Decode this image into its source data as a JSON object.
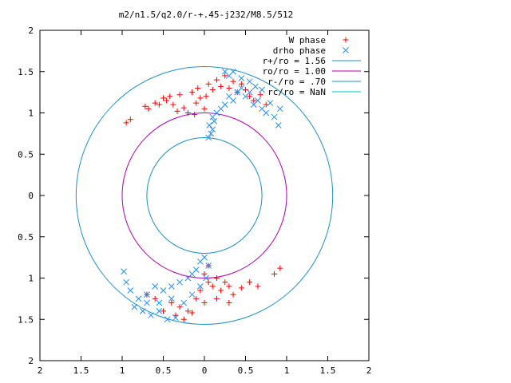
{
  "chart_data": {
    "type": "scatter",
    "title": "m2/n1.5/q2.0/r-+.45-j232/M8.5/512",
    "xlabel": "",
    "ylabel": "",
    "xlim": [
      -2,
      2
    ],
    "ylim": [
      -2,
      2
    ],
    "grid": false,
    "legend_position": "top-right",
    "x_ticks": [
      -2,
      -1.5,
      -1,
      -0.5,
      0,
      0.5,
      1,
      1.5,
      2
    ],
    "y_ticks": [
      -2,
      -1.5,
      -1,
      -0.5,
      0,
      0.5,
      1,
      1.5,
      2
    ],
    "x_tick_labels": [
      "2",
      "1.5",
      "1",
      "0.5",
      "0",
      "0.5",
      "1",
      "1.5",
      "2"
    ],
    "y_tick_labels": [
      "2",
      "1.5",
      "1",
      "0.5",
      "0",
      "0.5",
      "1",
      "1.5",
      "2"
    ],
    "series": [
      {
        "name": "W phase",
        "marker": "plus",
        "color": "#ff0000",
        "points": [
          [
            -0.95,
            0.88
          ],
          [
            -0.9,
            0.92
          ],
          [
            -0.72,
            1.08
          ],
          [
            -0.68,
            1.05
          ],
          [
            -0.6,
            1.12
          ],
          [
            -0.55,
            1.1
          ],
          [
            -0.5,
            1.18
          ],
          [
            -0.46,
            1.15
          ],
          [
            -0.42,
            1.2
          ],
          [
            -0.38,
            1.1
          ],
          [
            -0.33,
            1.02
          ],
          [
            -0.3,
            1.22
          ],
          [
            -0.25,
            1.06
          ],
          [
            -0.2,
            1.0
          ],
          [
            -0.15,
            1.25
          ],
          [
            -0.12,
            0.98
          ],
          [
            -0.1,
            1.12
          ],
          [
            -0.08,
            1.3
          ],
          [
            -0.05,
            1.18
          ],
          [
            0.0,
            1.05
          ],
          [
            0.02,
            1.2
          ],
          [
            0.05,
            1.35
          ],
          [
            0.1,
            1.28
          ],
          [
            0.15,
            1.4
          ],
          [
            0.2,
            1.32
          ],
          [
            0.25,
            1.45
          ],
          [
            0.3,
            1.3
          ],
          [
            0.35,
            1.38
          ],
          [
            0.4,
            1.25
          ],
          [
            0.45,
            1.35
          ],
          [
            0.5,
            1.28
          ],
          [
            0.55,
            1.2
          ],
          [
            0.6,
            1.15
          ],
          [
            0.68,
            1.22
          ],
          [
            0.75,
            1.1
          ],
          [
            0.05,
            -0.85
          ],
          [
            0.0,
            -0.95
          ],
          [
            0.05,
            -1.05
          ],
          [
            0.1,
            -1.1
          ],
          [
            0.15,
            -1.0
          ],
          [
            0.2,
            -1.15
          ],
          [
            0.25,
            -1.05
          ],
          [
            0.3,
            -1.1
          ],
          [
            0.35,
            -1.2
          ],
          [
            0.45,
            -1.12
          ],
          [
            0.55,
            -1.05
          ],
          [
            0.65,
            -1.1
          ],
          [
            0.85,
            -0.95
          ],
          [
            0.92,
            -0.88
          ],
          [
            0.3,
            -1.3
          ],
          [
            0.15,
            -1.25
          ],
          [
            0.0,
            -1.3
          ],
          [
            -0.1,
            -1.25
          ],
          [
            -0.2,
            -1.4
          ],
          [
            -0.3,
            -1.35
          ],
          [
            -0.4,
            -1.3
          ],
          [
            -0.5,
            -1.4
          ],
          [
            -0.6,
            -1.25
          ],
          [
            -0.7,
            -1.2
          ],
          [
            -0.25,
            -1.5
          ],
          [
            -0.15,
            -1.42
          ],
          [
            -0.05,
            -1.15
          ],
          [
            -0.35,
            -1.45
          ]
        ]
      },
      {
        "name": "drho phase",
        "marker": "cross",
        "color": "#1e90ff",
        "points": [
          [
            0.05,
            0.7
          ],
          [
            0.08,
            0.75
          ],
          [
            0.1,
            0.8
          ],
          [
            0.06,
            0.85
          ],
          [
            0.12,
            0.9
          ],
          [
            0.1,
            0.95
          ],
          [
            0.15,
            1.0
          ],
          [
            0.2,
            1.05
          ],
          [
            0.25,
            1.1
          ],
          [
            0.3,
            1.2
          ],
          [
            0.35,
            1.15
          ],
          [
            0.4,
            1.25
          ],
          [
            0.45,
            1.3
          ],
          [
            0.5,
            1.2
          ],
          [
            0.55,
            1.25
          ],
          [
            0.6,
            1.1
          ],
          [
            0.65,
            1.15
          ],
          [
            0.7,
            1.05
          ],
          [
            0.75,
            1.0
          ],
          [
            0.8,
            1.12
          ],
          [
            0.85,
            0.95
          ],
          [
            0.9,
            0.85
          ],
          [
            0.92,
            1.05
          ],
          [
            0.3,
            1.45
          ],
          [
            0.25,
            1.5
          ],
          [
            0.35,
            1.5
          ],
          [
            0.45,
            1.42
          ],
          [
            0.55,
            1.38
          ],
          [
            0.62,
            1.32
          ],
          [
            0.7,
            1.28
          ],
          [
            0.0,
            -0.75
          ],
          [
            -0.05,
            -0.8
          ],
          [
            0.05,
            -0.85
          ],
          [
            -0.1,
            -0.9
          ],
          [
            -0.15,
            -0.95
          ],
          [
            -0.2,
            -1.0
          ],
          [
            -0.3,
            -1.05
          ],
          [
            -0.4,
            -1.1
          ],
          [
            -0.5,
            -1.15
          ],
          [
            -0.6,
            -1.1
          ],
          [
            -0.7,
            -1.2
          ],
          [
            -0.8,
            -1.25
          ],
          [
            -0.9,
            -1.15
          ],
          [
            -0.95,
            -1.05
          ],
          [
            -0.98,
            -0.92
          ],
          [
            -0.85,
            -1.35
          ],
          [
            -0.75,
            -1.4
          ],
          [
            -0.65,
            -1.45
          ],
          [
            -0.55,
            -1.4
          ],
          [
            -0.45,
            -1.5
          ],
          [
            -0.35,
            -1.48
          ],
          [
            -0.25,
            -1.3
          ],
          [
            -0.15,
            -1.2
          ],
          [
            -0.05,
            -1.1
          ],
          [
            0.02,
            -1.0
          ],
          [
            -0.55,
            -1.3
          ],
          [
            -0.7,
            -1.3
          ],
          [
            -0.4,
            -1.25
          ]
        ]
      }
    ],
    "circles": [
      {
        "name": "r+/ro = 1.56",
        "radius": 1.56,
        "color": "#1e90c8"
      },
      {
        "name": "ro/ro = 1.00",
        "radius": 1.0,
        "color": "#b000b0"
      },
      {
        "name": "r-/ro = .70",
        "radius": 0.7,
        "color": "#1e90c8"
      },
      {
        "name": "rc/ro = NaN",
        "radius": null,
        "color": "#00c8c8"
      }
    ]
  }
}
